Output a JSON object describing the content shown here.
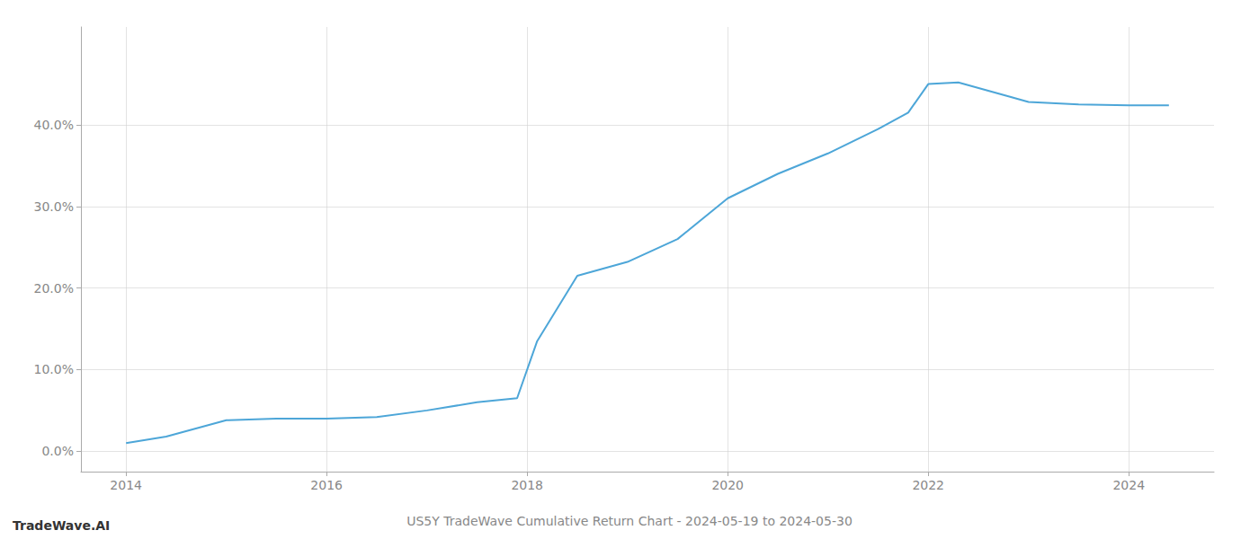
{
  "chart_data": {
    "type": "line",
    "title": "US5Y TradeWave Cumulative Return Chart - 2024-05-19 to 2024-05-30",
    "annotations": [
      "TradeWave.AI"
    ],
    "x": [
      2014.0,
      2014.4,
      2015.0,
      2015.5,
      2016.0,
      2016.5,
      2017.0,
      2017.5,
      2017.9,
      2018.1,
      2018.5,
      2019.0,
      2019.5,
      2020.0,
      2020.5,
      2021.0,
      2021.5,
      2021.8,
      2022.0,
      2022.3,
      2022.8,
      2023.0,
      2023.5,
      2024.0,
      2024.4
    ],
    "values": [
      0.01,
      0.018,
      0.038,
      0.04,
      0.04,
      0.042,
      0.05,
      0.06,
      0.065,
      0.135,
      0.215,
      0.232,
      0.26,
      0.31,
      0.34,
      0.365,
      0.395,
      0.415,
      0.45,
      0.452,
      0.435,
      0.428,
      0.425,
      0.424,
      0.424
    ],
    "color": "#4da6d8",
    "xlim": [
      2013.55,
      2024.85
    ],
    "ylim": [
      -0.025,
      0.52
    ],
    "xticks": [
      2014,
      2016,
      2018,
      2020,
      2022,
      2024
    ],
    "yticks": [
      {
        "value": 0.0,
        "label": "0.0%"
      },
      {
        "value": 0.1,
        "label": "10.0%"
      },
      {
        "value": 0.2,
        "label": "20.0%"
      },
      {
        "value": 0.3,
        "label": "30.0%"
      },
      {
        "value": 0.4,
        "label": "40.0%"
      }
    ],
    "grid": true
  }
}
